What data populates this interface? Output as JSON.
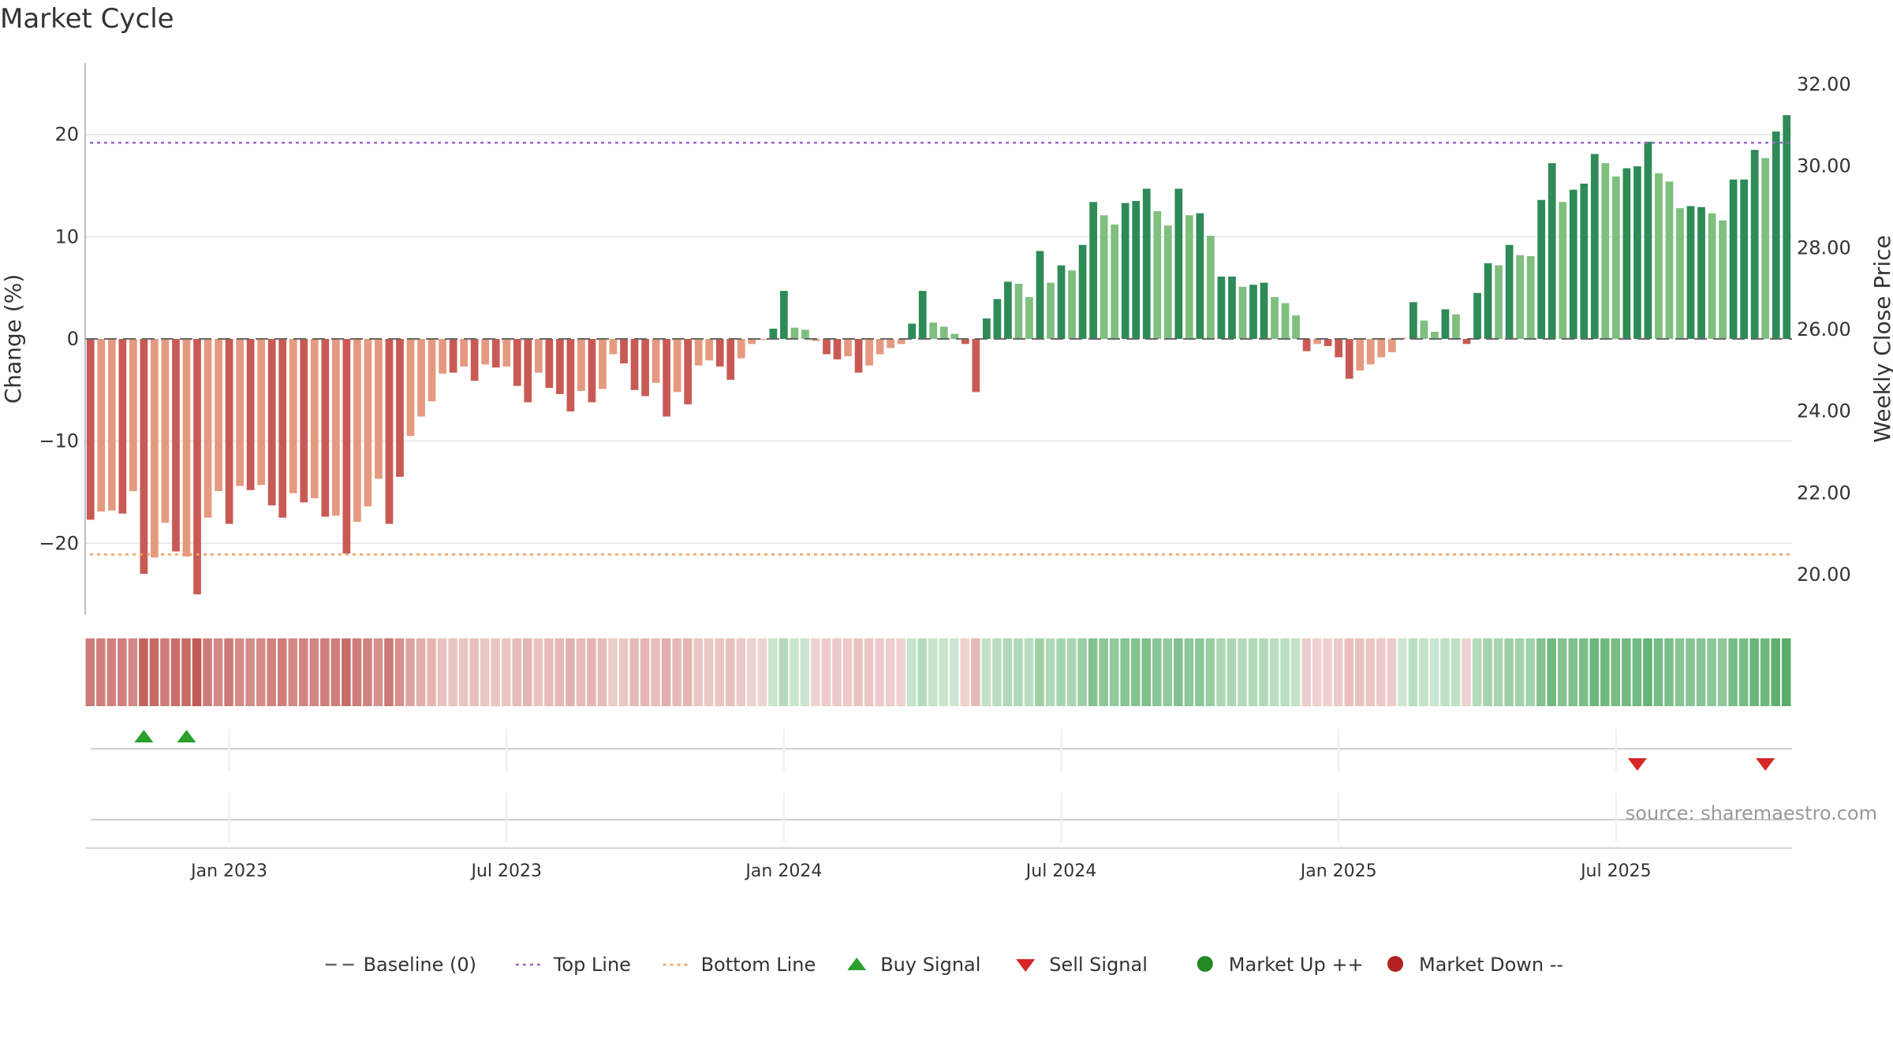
{
  "title": "Market Cycle",
  "source": "source: sharemaestro.com",
  "chart_data": {
    "type": "bar",
    "title": "Market Cycle",
    "ylabel": "Change (%)",
    "y2label": "Weekly Close Price",
    "ylim": [
      -27,
      27
    ],
    "y2lim": [
      19.0,
      32.5
    ],
    "yticks": [
      -20,
      -10,
      0,
      10,
      20
    ],
    "yticklabels": [
      "−20",
      "−10",
      "0",
      "10",
      "20"
    ],
    "y2ticks": [
      "20.00",
      "22.00",
      "24.00",
      "26.00",
      "28.00",
      "30.00",
      "32.00"
    ],
    "xticks": [
      {
        "label": "Jan 2023",
        "index": 13.5
      },
      {
        "label": "Jul 2023",
        "index": 39.5
      },
      {
        "label": "Jan 2024",
        "index": 65.5
      },
      {
        "label": "Jul 2024",
        "index": 91.5
      },
      {
        "label": "Jan 2025",
        "index": 117.5
      },
      {
        "label": "Jul 2025",
        "index": 143.5
      }
    ],
    "top_line": 19.2,
    "bottom_line": -21.1,
    "values": [
      -17.7,
      -16.9,
      -16.8,
      -17.1,
      -14.9,
      -23,
      -21.4,
      -18,
      -20.8,
      -21.3,
      -25,
      -17.5,
      -14.9,
      -18.1,
      -14.4,
      -14.8,
      -14.3,
      -16.3,
      -17.5,
      -15.1,
      -16,
      -15.6,
      -17.4,
      -17.3,
      -21,
      -17.9,
      -16.4,
      -13.7,
      -18.1,
      -13.5,
      -9.5,
      -7.6,
      -6.1,
      -3.4,
      -3.3,
      -2.7,
      -4.1,
      -2.5,
      -2.8,
      -2.7,
      -4.6,
      -6.2,
      -3.3,
      -4.8,
      -5.4,
      -7.1,
      -5.1,
      -6.2,
      -4.9,
      -1.5,
      -2.4,
      -5,
      -5.6,
      -4.3,
      -7.6,
      -5.2,
      -6.4,
      -2.6,
      -2.1,
      -2.7,
      -4,
      -1.9,
      -0.5,
      -0.1,
      1,
      4.7,
      1.1,
      0.9,
      -0.2,
      -1.5,
      -2,
      -1.7,
      -3.3,
      -2.6,
      -1.5,
      -0.9,
      -0.5,
      1.5,
      4.7,
      1.6,
      1.2,
      0.5,
      -0.5,
      -5.2,
      2,
      3.9,
      5.6,
      5.4,
      4.1,
      8.6,
      5.5,
      7.2,
      6.7,
      9.2,
      13.4,
      12.1,
      11.2,
      13.3,
      13.5,
      14.7,
      12.5,
      11.1,
      14.7,
      12.1,
      12.3,
      10.1,
      6.1,
      6.1,
      5.1,
      5.3,
      5.5,
      4.1,
      3.5,
      2.3,
      -1.2,
      -0.5,
      -0.7,
      -1.8,
      -3.9,
      -3.1,
      -2.5,
      -1.8,
      -1.3,
      0.1,
      3.6,
      1.8,
      0.7,
      2.9,
      2.4,
      -0.5,
      4.5,
      7.4,
      7.2,
      9.2,
      8.2,
      8.1,
      13.6,
      17.2,
      13.4,
      14.6,
      15.2,
      18.1,
      17.2,
      15.9,
      16.7,
      16.9,
      19.3,
      16.2,
      15.4,
      12.8,
      13,
      12.9,
      12.3,
      11.6,
      15.6,
      15.6,
      18.5,
      17.7,
      20.3,
      21.9
    ],
    "bar_color_codes": [
      "DR",
      "LR",
      "LR",
      "DR",
      "LR",
      "DR",
      "LR",
      "LR",
      "DR",
      "LR",
      "DR",
      "LR",
      "LR",
      "DR",
      "LR",
      "DR",
      "LR",
      "DR",
      "DR",
      "LR",
      "DR",
      "LR",
      "DR",
      "LR",
      "DR",
      "LR",
      "LR",
      "LR",
      "DR",
      "DR",
      "LR",
      "LR",
      "LR",
      "LR",
      "DR",
      "LR",
      "DR",
      "LR",
      "DR",
      "LR",
      "DR",
      "DR",
      "LR",
      "DR",
      "DR",
      "DR",
      "LR",
      "DR",
      "LR",
      "LR",
      "DR",
      "DR",
      "DR",
      "LR",
      "DR",
      "LR",
      "DR",
      "LR",
      "LR",
      "DR",
      "DR",
      "LR",
      "LR",
      "LR",
      "DG",
      "DG",
      "LG",
      "LG",
      "LR",
      "DR",
      "DR",
      "LR",
      "DR",
      "LR",
      "LR",
      "LR",
      "LR",
      "DG",
      "DG",
      "LG",
      "LG",
      "LG",
      "DR",
      "DR",
      "DG",
      "DG",
      "DG",
      "LG",
      "LG",
      "DG",
      "LG",
      "DG",
      "LG",
      "DG",
      "DG",
      "LG",
      "LG",
      "DG",
      "DG",
      "DG",
      "LG",
      "LG",
      "DG",
      "LG",
      "DG",
      "LG",
      "DG",
      "DG",
      "LG",
      "DG",
      "DG",
      "LG",
      "LG",
      "LG",
      "DR",
      "LR",
      "DR",
      "DR",
      "DR",
      "LR",
      "LR",
      "LR",
      "LR",
      "LR",
      "DG",
      "LG",
      "LG",
      "DG",
      "LG",
      "DR",
      "DG",
      "DG",
      "LG",
      "DG",
      "LG",
      "LG",
      "DG",
      "DG",
      "LG",
      "DG",
      "DG",
      "DG",
      "LG",
      "LG",
      "DG",
      "DG",
      "DG",
      "LG",
      "LG",
      "LG",
      "DG",
      "DG",
      "LG",
      "LG",
      "DG",
      "DG",
      "DG",
      "LG",
      "DG",
      "DG"
    ],
    "weekly_close_line": "hidden",
    "signals": [
      {
        "type": "Buy Signal",
        "index": 5
      },
      {
        "type": "Buy Signal",
        "index": 9
      },
      {
        "type": "Sell Signal",
        "index": 145
      },
      {
        "type": "Sell Signal",
        "index": 157
      }
    ],
    "legend": [
      {
        "label": "Baseline (0)",
        "symbol": "dash",
        "color": "#666666"
      },
      {
        "label": "Top Line",
        "symbol": "dot",
        "color": "#9966cc"
      },
      {
        "label": "Bottom Line",
        "symbol": "dot",
        "color": "#f0a060"
      },
      {
        "label": "Buy Signal",
        "symbol": "triangle-up",
        "color": "#2ca02c"
      },
      {
        "label": "Sell Signal",
        "symbol": "triangle-down",
        "color": "#d62728"
      },
      {
        "label": "Market Up ++",
        "symbol": "circle",
        "color": "#228b22"
      },
      {
        "label": "Market Down --",
        "symbol": "circle",
        "color": "#b22222"
      }
    ],
    "legend_position": "bottom-center",
    "colors": {
      "dark_red": "#c85a55",
      "light_red": "#e59a80",
      "dark_green": "#2e8b57",
      "light_green": "#7fbf7f"
    }
  }
}
